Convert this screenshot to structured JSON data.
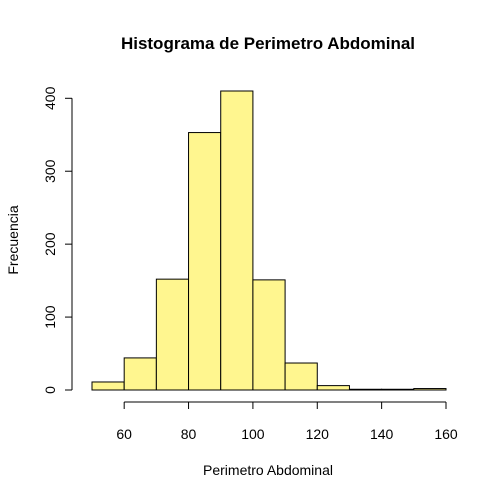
{
  "chart_data": {
    "type": "bar",
    "title": "Histograma de Perimetro Abdominal",
    "xlabel": "Perimetro Abdominal",
    "ylabel": "Frecuencia",
    "bin_edges": [
      50,
      60,
      70,
      80,
      90,
      100,
      110,
      120,
      130,
      140,
      150,
      160
    ],
    "values": [
      11,
      44,
      152,
      353,
      410,
      151,
      37,
      6,
      1,
      1,
      2
    ],
    "xlim": [
      50,
      160
    ],
    "ylim": [
      0,
      410
    ],
    "x_ticks": [
      60,
      80,
      100,
      120,
      140,
      160
    ],
    "y_ticks": [
      0,
      100,
      200,
      300,
      400
    ],
    "bar_color": "#FFF68F",
    "grid": false,
    "legend": "none"
  }
}
